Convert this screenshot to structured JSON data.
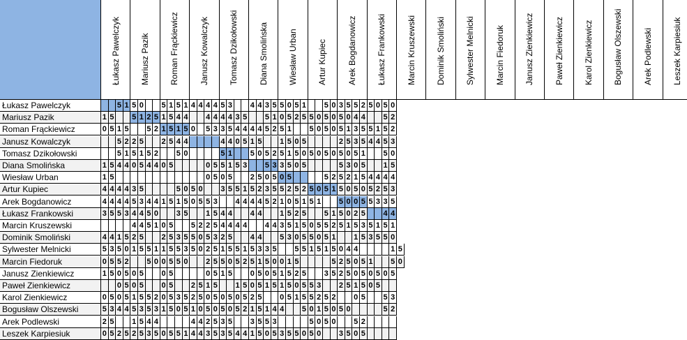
{
  "sheet": {
    "corner_color": "#8eb4e3",
    "diagonal_color": "#8eb4e3",
    "names": [
      "Łukasz Pawelczyk",
      "Mariusz Pazik",
      "Roman Frąckiewicz",
      "Janusz Kowalczyk",
      "Tomasz Dzikołowski",
      "Diana Smolińska",
      "Wiesław Urban",
      "Artur Kupiec",
      "Arek Bogdanowicz",
      "Łukasz Frankowski",
      "Marcin Kruszewski",
      "Dominik Smoliński",
      "Sylwester Melnicki",
      "Marcin Fiedoruk",
      "Janusz Zienkiewicz",
      "Paweł Zienkiewicz",
      "Karol Zienkiewicz",
      "Bogusław Olszewski",
      "Arek Podlewski",
      "Leszek Karpiesiuk"
    ],
    "rows": [
      [
        "",
        "",
        "5",
        "1",
        "5",
        "0",
        "",
        "",
        "5",
        "1",
        "5",
        "1",
        "4",
        "4",
        "4",
        "4",
        "5",
        "3",
        "",
        "",
        "4",
        "4",
        "3",
        "5",
        "5",
        "0",
        "5",
        "1",
        "",
        "",
        "5",
        "0",
        "3",
        "5",
        "5",
        "2",
        "5",
        "0",
        "5",
        "0"
      ],
      [
        "1",
        "5",
        "",
        "",
        "5",
        "1",
        "2",
        "5",
        "1",
        "5",
        "4",
        "4",
        "",
        "",
        "4",
        "4",
        "4",
        "4",
        "3",
        "5",
        "",
        "",
        "5",
        "1",
        "0",
        "5",
        "2",
        "5",
        "5",
        "0",
        "5",
        "0",
        "5",
        "0",
        "4",
        "4",
        "",
        "",
        "5",
        "2"
      ],
      [
        "0",
        "5",
        "1",
        "5",
        "",
        "",
        "5",
        "2",
        "1",
        "5",
        "1",
        "5",
        "0",
        "",
        "5",
        "3",
        "3",
        "5",
        "4",
        "4",
        "4",
        "4",
        "5",
        "2",
        "5",
        "1",
        "",
        "",
        "5",
        "0",
        "5",
        "0",
        "5",
        "1",
        "3",
        "5",
        "5",
        "1",
        "5",
        "2"
      ],
      [
        "",
        "",
        "5",
        "2",
        "2",
        "5",
        "",
        "",
        "2",
        "5",
        "4",
        "4",
        "",
        "",
        "",
        "",
        "4",
        "4",
        "0",
        "5",
        "1",
        "5",
        "",
        "",
        "1",
        "5",
        "0",
        "5",
        "",
        "",
        "",
        "",
        "2",
        "5",
        "3",
        "5",
        "4",
        "4",
        "5",
        "3"
      ],
      [
        "",
        "",
        "5",
        "1",
        "5",
        "1",
        "5",
        "2",
        "",
        "",
        "5",
        "0",
        "",
        "",
        "",
        "",
        "5",
        "1",
        "",
        "",
        "5",
        "0",
        "5",
        "2",
        "5",
        "1",
        "5",
        "0",
        "5",
        "0",
        "5",
        "0",
        "5",
        "0",
        "5",
        "1",
        "",
        "",
        "5",
        "0"
      ],
      [
        "1",
        "5",
        "4",
        "4",
        "0",
        "5",
        "4",
        "4",
        "0",
        "5",
        "",
        "",
        "",
        "",
        "0",
        "5",
        "5",
        "1",
        "5",
        "3",
        "",
        "",
        "5",
        "3",
        "3",
        "5",
        "0",
        "5",
        "",
        "",
        "",
        "",
        "5",
        "3",
        "0",
        "5",
        "",
        "",
        "1",
        "5"
      ],
      [
        "1",
        "5",
        "",
        "",
        "",
        "",
        "",
        "",
        "",
        "",
        "",
        "",
        "",
        "",
        "0",
        "5",
        "0",
        "5",
        "",
        "",
        "2",
        "5",
        "0",
        "5",
        "0",
        "5",
        "",
        "",
        "",
        "",
        "5",
        "2",
        "5",
        "2",
        "1",
        "5",
        "4",
        "4",
        "4",
        "4"
      ],
      [
        "4",
        "4",
        "4",
        "4",
        "3",
        "5",
        "",
        "",
        "",
        "",
        "5",
        "0",
        "5",
        "0",
        "",
        "",
        "3",
        "5",
        "5",
        "1",
        "5",
        "2",
        "3",
        "5",
        "5",
        "2",
        "5",
        "2",
        "5",
        "0",
        "5",
        "1",
        "5",
        "0",
        "5",
        "0",
        "5",
        "2",
        "5",
        "3"
      ],
      [
        "4",
        "4",
        "4",
        "4",
        "5",
        "3",
        "4",
        "4",
        "1",
        "5",
        "1",
        "5",
        "0",
        "5",
        "5",
        "3",
        "",
        "",
        "4",
        "4",
        "4",
        "4",
        "5",
        "2",
        "1",
        "0",
        "5",
        "1",
        "5",
        "1",
        "",
        "",
        "5",
        "0",
        "0",
        "5",
        "5",
        "3",
        "3",
        "5"
      ],
      [
        "3",
        "5",
        "5",
        "3",
        "4",
        "4",
        "5",
        "0",
        "",
        "",
        "3",
        "5",
        "",
        "",
        "1",
        "5",
        "4",
        "4",
        "",
        "",
        "4",
        "4",
        "",
        "",
        "1",
        "5",
        "2",
        "5",
        "",
        "",
        "5",
        "1",
        "5",
        "0",
        "2",
        "5",
        "",
        "",
        "4",
        "4"
      ],
      [
        "",
        "",
        "",
        "",
        "4",
        "4",
        "5",
        "1",
        "0",
        "5",
        "",
        "",
        "5",
        "2",
        "2",
        "5",
        "4",
        "4",
        "4",
        "4",
        "",
        "",
        "4",
        "4",
        "3",
        "5",
        "1",
        "5",
        "0",
        "5",
        "5",
        "2",
        "5",
        "1",
        "5",
        "3",
        "5",
        "1",
        "5",
        "1"
      ],
      [
        "4",
        "4",
        "1",
        "5",
        "2",
        "5",
        "",
        "",
        "2",
        "5",
        "3",
        "5",
        "5",
        "0",
        "5",
        "3",
        "2",
        "5",
        "",
        "",
        "4",
        "4",
        "",
        "",
        "5",
        "3",
        "0",
        "5",
        "5",
        "0",
        "5",
        "1",
        "",
        "",
        "1",
        "5",
        "3",
        "5",
        "5",
        "0"
      ],
      [
        "5",
        "3",
        "5",
        "0",
        "1",
        "5",
        "5",
        "1",
        "1",
        "5",
        "5",
        "3",
        "5",
        "0",
        "2",
        "5",
        "1",
        "5",
        "5",
        "1",
        "5",
        "3",
        "3",
        "5",
        "",
        "",
        "5",
        "5",
        "1",
        "5",
        "1",
        "5",
        "0",
        "4",
        "4",
        "",
        "",
        "",
        "",
        "1",
        "5"
      ],
      [
        "0",
        "5",
        "5",
        "2",
        "",
        "",
        "5",
        "0",
        "0",
        "5",
        "5",
        "0",
        "",
        "",
        "2",
        "5",
        "5",
        "0",
        "5",
        "2",
        "5",
        "1",
        "5",
        "0",
        "0",
        "1",
        "5",
        "",
        "",
        "",
        "",
        "5",
        "2",
        "5",
        "0",
        "5",
        "1",
        "",
        "",
        "5",
        "0"
      ],
      [
        "1",
        "5",
        "0",
        "5",
        "0",
        "5",
        "",
        "",
        "0",
        "5",
        "",
        "",
        "",
        "",
        "0",
        "5",
        "1",
        "5",
        "",
        "",
        "0",
        "5",
        "0",
        "5",
        "1",
        "5",
        "2",
        "5",
        "",
        "",
        "3",
        "5",
        "2",
        "5",
        "0",
        "5",
        "0",
        "5",
        "0",
        "5"
      ],
      [
        "",
        "",
        "0",
        "5",
        "0",
        "5",
        "",
        "",
        "0",
        "5",
        "",
        "",
        "2",
        "5",
        "1",
        "5",
        "",
        "",
        "1",
        "5",
        "0",
        "5",
        "1",
        "5",
        "1",
        "5",
        "0",
        "5",
        "5",
        "3",
        "",
        "",
        "2",
        "5",
        "1",
        "5",
        "0",
        "5",
        "",
        ""
      ],
      [
        "0",
        "5",
        "0",
        "5",
        "1",
        "5",
        "5",
        "2",
        "0",
        "5",
        "3",
        "5",
        "2",
        "5",
        "0",
        "5",
        "0",
        "5",
        "0",
        "5",
        "2",
        "5",
        "",
        "",
        "0",
        "5",
        "1",
        "5",
        "5",
        "2",
        "5",
        "2",
        "",
        "",
        "0",
        "5",
        "",
        "",
        "5",
        "3"
      ],
      [
        "5",
        "3",
        "4",
        "4",
        "5",
        "3",
        "5",
        "3",
        "1",
        "5",
        "0",
        "5",
        "1",
        "0",
        "5",
        "0",
        "5",
        "0",
        "5",
        "2",
        "1",
        "5",
        "1",
        "4",
        "4",
        "",
        "",
        "5",
        "0",
        "1",
        "5",
        "0",
        "5",
        "0",
        "",
        "",
        "",
        "",
        "5",
        "2"
      ],
      [
        "2",
        "5",
        "",
        "",
        "1",
        "5",
        "4",
        "4",
        "",
        "",
        "",
        "",
        "4",
        "4",
        "2",
        "5",
        "3",
        "5",
        "",
        "",
        "3",
        "5",
        "5",
        "3",
        "",
        "",
        "",
        "",
        "5",
        "0",
        "5",
        "0",
        "",
        "",
        "5",
        "2",
        "",
        "",
        "",
        ""
      ],
      [
        "0",
        "5",
        "2",
        "5",
        "2",
        "5",
        "3",
        "5",
        "0",
        "5",
        "5",
        "1",
        "4",
        "4",
        "3",
        "5",
        "3",
        "5",
        "4",
        "4",
        "1",
        "5",
        "0",
        "5",
        "3",
        "5",
        "5",
        "0",
        "5",
        "0",
        "",
        "",
        "3",
        "5",
        "0",
        "5",
        "",
        "",
        "",
        ""
      ]
    ]
  }
}
